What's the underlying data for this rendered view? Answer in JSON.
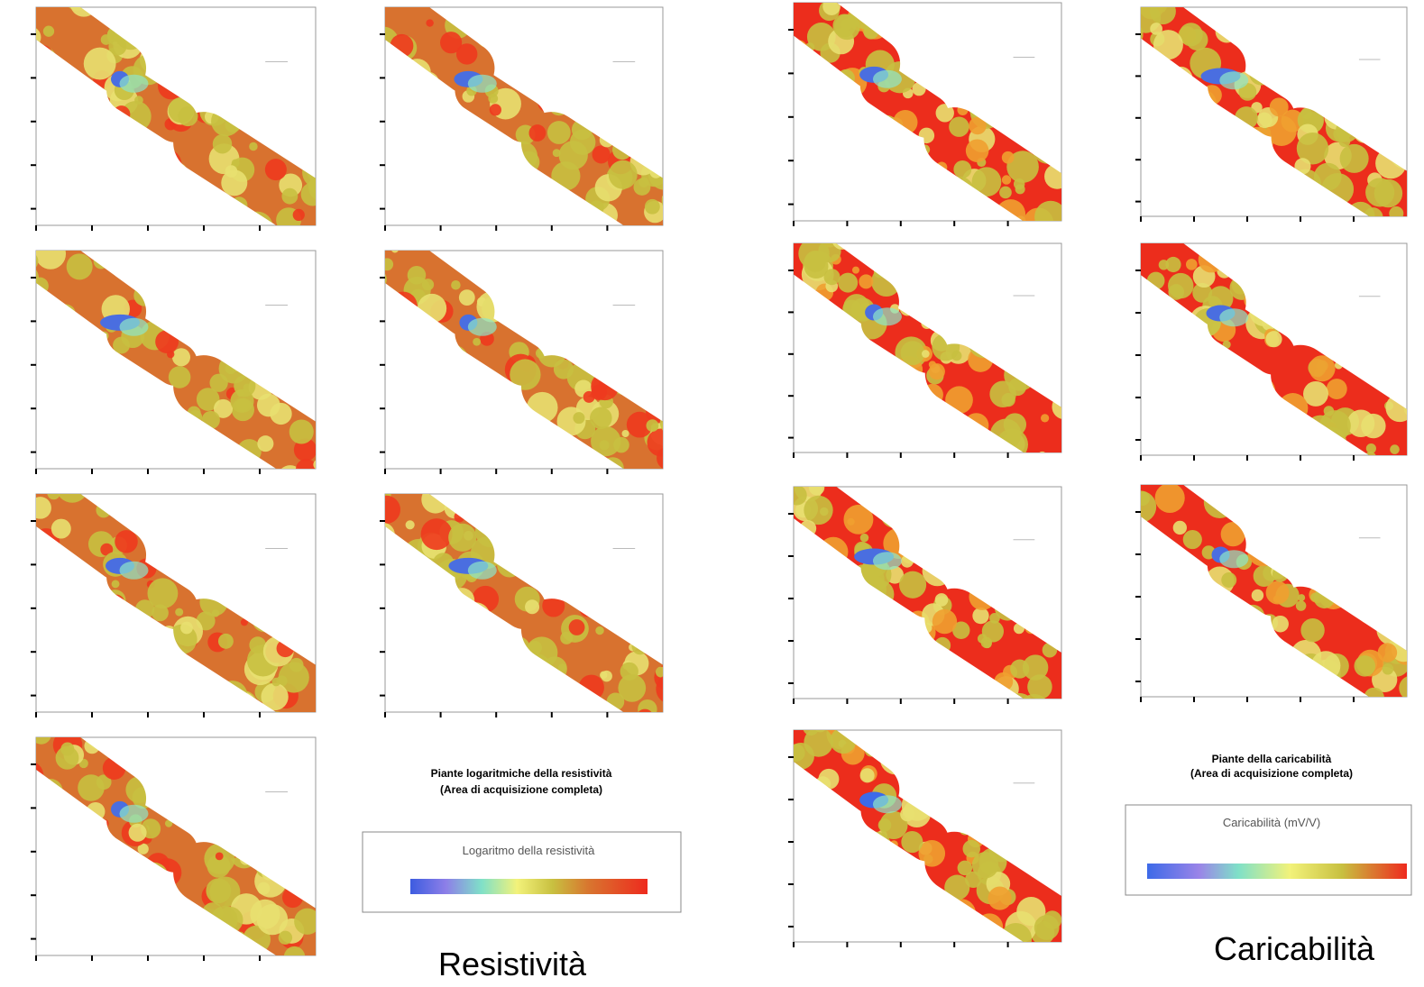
{
  "resistivity": {
    "title": "Piante logaritmiche della resistività",
    "subtitle": "(Area di acquisizione completa)",
    "legend_title": "Logaritmo della resistività",
    "caption": "Resistività"
  },
  "chargeability": {
    "title": "Piante della caricabilità",
    "subtitle": "(Area di acquisizione completa)",
    "legend_title": "Caricabilità (mV/V)",
    "caption": "Caricabilità"
  }
}
